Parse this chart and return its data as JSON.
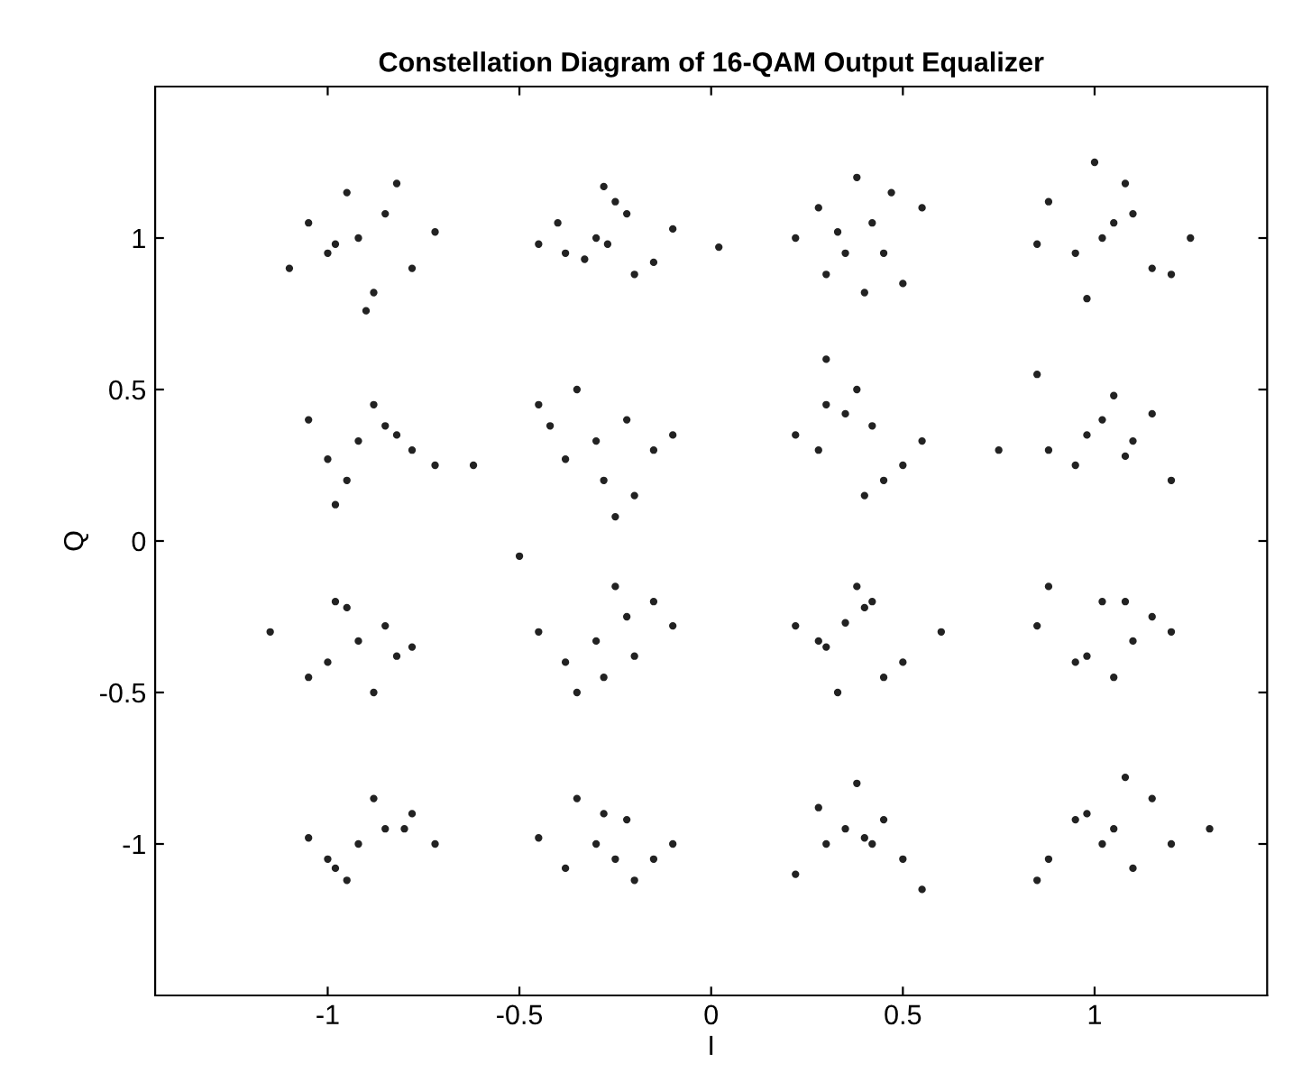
{
  "chart_data": {
    "type": "scatter",
    "title": "Constellation Diagram of 16-QAM Output Equalizer",
    "xlabel": "I",
    "ylabel": "Q",
    "xlim": [
      -1.45,
      1.45
    ],
    "ylim": [
      -1.5,
      1.5
    ],
    "xticks": [
      -1,
      -0.5,
      0,
      0.5,
      1
    ],
    "yticks": [
      -1,
      -0.5,
      0,
      0.5,
      1
    ],
    "grid": false,
    "marker": "circle",
    "series": [
      {
        "color": "#222222",
        "x": [
          -0.92,
          -0.85,
          -1.0,
          -0.78,
          -0.95,
          -1.05,
          -0.88,
          -0.72,
          -1.1,
          -0.9,
          -0.82,
          -0.98,
          -0.3,
          -0.22,
          -0.38,
          -0.15,
          -0.28,
          -0.45,
          -0.2,
          -0.33,
          -0.1,
          -0.25,
          -0.4,
          -0.27,
          0.35,
          0.42,
          0.28,
          0.5,
          0.38,
          0.22,
          0.45,
          0.3,
          0.55,
          0.4,
          0.33,
          0.47,
          1.02,
          1.1,
          0.95,
          1.15,
          0.88,
          1.05,
          1.2,
          0.98,
          0.85,
          1.08,
          1.25,
          1.0,
          0.02,
          -0.92,
          -0.85,
          -1.0,
          -0.78,
          -0.95,
          -1.05,
          -0.88,
          -0.72,
          -0.98,
          -0.82,
          -0.3,
          -0.22,
          -0.38,
          -0.15,
          -0.28,
          -0.45,
          -0.2,
          -0.35,
          -0.1,
          -0.25,
          -0.42,
          0.35,
          0.42,
          0.28,
          0.5,
          0.38,
          0.22,
          0.45,
          0.3,
          0.55,
          0.4,
          0.3,
          1.02,
          1.1,
          0.95,
          1.15,
          0.88,
          1.05,
          1.2,
          0.98,
          0.85,
          1.08,
          0.75,
          -0.62,
          -0.92,
          -0.85,
          -1.0,
          -0.78,
          -0.95,
          -1.05,
          -0.88,
          -1.15,
          -0.98,
          -0.82,
          -0.3,
          -0.22,
          -0.38,
          -0.15,
          -0.28,
          -0.45,
          -0.2,
          -0.35,
          -0.1,
          -0.25,
          0.35,
          0.42,
          0.28,
          0.5,
          0.38,
          0.22,
          0.45,
          0.3,
          0.6,
          0.4,
          0.33,
          1.02,
          1.1,
          0.95,
          1.15,
          0.88,
          1.05,
          1.2,
          0.98,
          0.85,
          1.08,
          -0.5,
          -0.92,
          -0.85,
          -1.0,
          -0.78,
          -0.95,
          -1.05,
          -0.88,
          -0.72,
          -0.98,
          -0.8,
          -0.3,
          -0.22,
          -0.38,
          -0.15,
          -0.28,
          -0.45,
          -0.2,
          -0.35,
          -0.1,
          -0.25,
          0.35,
          0.42,
          0.28,
          0.5,
          0.38,
          0.22,
          0.45,
          0.3,
          0.55,
          0.4,
          1.02,
          1.1,
          0.95,
          1.15,
          0.88,
          1.05,
          1.2,
          0.98,
          0.85,
          1.08,
          1.3
        ],
        "values": [
          1.0,
          1.08,
          0.95,
          0.9,
          1.15,
          1.05,
          0.82,
          1.02,
          0.9,
          0.76,
          1.18,
          0.98,
          1.0,
          1.08,
          0.95,
          0.92,
          1.17,
          0.98,
          0.88,
          0.93,
          1.03,
          1.12,
          1.05,
          0.98,
          0.95,
          1.05,
          1.1,
          0.85,
          1.2,
          1.0,
          0.95,
          0.88,
          1.1,
          0.82,
          1.02,
          1.15,
          1.0,
          1.08,
          0.95,
          0.9,
          1.12,
          1.05,
          0.88,
          0.8,
          0.98,
          1.18,
          1.0,
          1.25,
          0.97,
          0.33,
          0.38,
          0.27,
          0.3,
          0.2,
          0.4,
          0.45,
          0.25,
          0.12,
          0.35,
          0.33,
          0.4,
          0.27,
          0.3,
          0.2,
          0.45,
          0.15,
          0.5,
          0.35,
          0.08,
          0.38,
          0.42,
          0.38,
          0.3,
          0.25,
          0.5,
          0.35,
          0.2,
          0.45,
          0.33,
          0.15,
          0.6,
          0.4,
          0.33,
          0.25,
          0.42,
          0.3,
          0.48,
          0.2,
          0.35,
          0.55,
          0.28,
          0.3,
          0.25,
          -0.33,
          -0.28,
          -0.4,
          -0.35,
          -0.22,
          -0.45,
          -0.5,
          -0.3,
          -0.2,
          -0.38,
          -0.33,
          -0.25,
          -0.4,
          -0.2,
          -0.45,
          -0.3,
          -0.38,
          -0.5,
          -0.28,
          -0.15,
          -0.27,
          -0.2,
          -0.33,
          -0.4,
          -0.15,
          -0.28,
          -0.45,
          -0.35,
          -0.3,
          -0.22,
          -0.5,
          -0.2,
          -0.33,
          -0.4,
          -0.25,
          -0.15,
          -0.45,
          -0.3,
          -0.38,
          -0.28,
          -0.2,
          -0.05,
          -1.0,
          -0.95,
          -1.05,
          -0.9,
          -1.12,
          -0.98,
          -0.85,
          -1.0,
          -1.08,
          -0.95,
          -1.0,
          -0.92,
          -1.08,
          -1.05,
          -0.9,
          -0.98,
          -1.12,
          -0.85,
          -1.0,
          -1.05,
          -0.95,
          -1.0,
          -0.88,
          -1.05,
          -0.8,
          -1.1,
          -0.92,
          -1.0,
          -1.15,
          -0.98,
          -1.0,
          -1.08,
          -0.92,
          -0.85,
          -1.05,
          -0.95,
          -1.0,
          -0.9,
          -1.12,
          -0.78,
          -0.95
        ]
      }
    ]
  }
}
